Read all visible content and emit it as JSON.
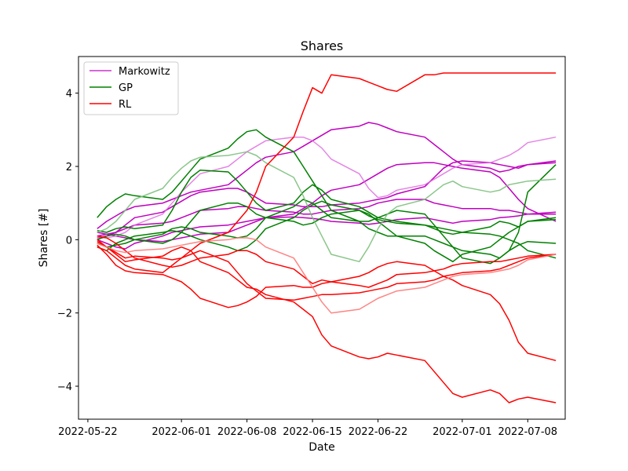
{
  "chart_data": {
    "type": "line",
    "title": "Shares",
    "xlabel": "Date",
    "ylabel": "Shares [#]",
    "x_dates": [
      "2022-05-23",
      "2022-05-24",
      "2022-05-25",
      "2022-05-26",
      "2022-05-27",
      "2022-05-30",
      "2022-05-31",
      "2022-06-01",
      "2022-06-02",
      "2022-06-03",
      "2022-06-06",
      "2022-06-07",
      "2022-06-08",
      "2022-06-09",
      "2022-06-10",
      "2022-06-13",
      "2022-06-14",
      "2022-06-15",
      "2022-06-16",
      "2022-06-17",
      "2022-06-20",
      "2022-06-21",
      "2022-06-22",
      "2022-06-23",
      "2022-06-24",
      "2022-06-27",
      "2022-06-28",
      "2022-06-29",
      "2022-06-30",
      "2022-07-01",
      "2022-07-04",
      "2022-07-05",
      "2022-07-06",
      "2022-07-07",
      "2022-07-08",
      "2022-07-11"
    ],
    "xticks": [
      "2022-05-22",
      "2022-06-01",
      "2022-06-08",
      "2022-06-15",
      "2022-06-22",
      "2022-07-01",
      "2022-07-08"
    ],
    "xlim": [
      "2022-05-21",
      "2022-07-12"
    ],
    "yticks": [
      -4,
      -2,
      0,
      2,
      4
    ],
    "ylim": [
      -4.9,
      5.0
    ],
    "grid": false,
    "legend": {
      "position": "upper-left",
      "entries": [
        {
          "label": "Markowitz",
          "color": "#cc33cc"
        },
        {
          "label": "GP",
          "color": "#008000"
        },
        {
          "label": "RL",
          "color": "#ff0000"
        }
      ]
    },
    "series": [
      {
        "group": "Markowitz",
        "color": "#bf00bf",
        "opacity": 1.0,
        "values": [
          0.3,
          0.5,
          0.65,
          0.8,
          0.9,
          1.0,
          1.1,
          1.2,
          1.3,
          1.35,
          1.5,
          1.7,
          1.9,
          2.1,
          2.25,
          2.4,
          2.55,
          2.7,
          2.85,
          3.0,
          3.1,
          3.2,
          3.15,
          3.05,
          2.95,
          2.8,
          2.6,
          2.4,
          2.2,
          2.05,
          1.95,
          1.85,
          1.9,
          2.0,
          2.05,
          2.1
        ]
      },
      {
        "group": "Markowitz",
        "color": "#bf00bf",
        "opacity": 1.0,
        "values": [
          0.1,
          0.15,
          0.2,
          0.4,
          0.6,
          0.75,
          0.9,
          1.05,
          1.2,
          1.3,
          1.4,
          1.4,
          1.3,
          1.15,
          1.0,
          0.95,
          0.9,
          0.9,
          0.9,
          0.95,
          1.0,
          1.05,
          1.1,
          1.15,
          1.25,
          1.45,
          1.7,
          1.95,
          2.1,
          2.15,
          2.1,
          2.05,
          2.0,
          1.95,
          2.05,
          2.15
        ]
      },
      {
        "group": "Markowitz",
        "color": "#bf00bf",
        "opacity": 1.0,
        "values": [
          0.05,
          0.1,
          0.2,
          0.3,
          0.4,
          0.45,
          0.5,
          0.6,
          0.7,
          0.8,
          0.85,
          0.9,
          0.9,
          0.85,
          0.8,
          0.75,
          0.7,
          0.7,
          0.75,
          0.8,
          0.85,
          0.9,
          1.0,
          1.05,
          1.1,
          1.1,
          1.0,
          0.95,
          0.9,
          0.85,
          0.85,
          0.8,
          0.8,
          0.75,
          0.7,
          0.7
        ]
      },
      {
        "group": "Markowitz",
        "color": "#bf00bf",
        "opacity": 1.0,
        "values": [
          0.0,
          -0.1,
          -0.2,
          -0.25,
          -0.1,
          0.1,
          0.2,
          0.25,
          0.3,
          0.35,
          0.4,
          0.45,
          0.5,
          0.55,
          0.6,
          0.62,
          0.6,
          0.58,
          0.55,
          0.5,
          0.45,
          0.42,
          0.45,
          0.5,
          0.55,
          0.6,
          0.55,
          0.5,
          0.45,
          0.5,
          0.55,
          0.6,
          0.62,
          0.65,
          0.7,
          0.75
        ]
      },
      {
        "group": "Markowitz",
        "color": "#bf00bf",
        "opacity": 1.0,
        "values": [
          0.2,
          0.15,
          0.1,
          0.05,
          0.0,
          -0.05,
          0.0,
          0.05,
          0.1,
          0.15,
          0.2,
          0.3,
          0.4,
          0.5,
          0.6,
          0.7,
          0.85,
          1.0,
          1.2,
          1.35,
          1.5,
          1.65,
          1.8,
          1.95,
          2.05,
          2.1,
          2.1,
          2.05,
          2.0,
          1.95,
          1.85,
          1.7,
          1.4,
          1.1,
          0.85,
          0.5
        ]
      },
      {
        "group": "Markowitz",
        "color": "#dd66dd",
        "opacity": 0.8,
        "values": [
          0.05,
          0.05,
          0.1,
          0.2,
          0.4,
          0.7,
          1.0,
          1.3,
          1.55,
          1.8,
          2.0,
          2.2,
          2.4,
          2.55,
          2.7,
          2.8,
          2.8,
          2.7,
          2.5,
          2.2,
          1.8,
          1.4,
          1.15,
          1.2,
          1.35,
          1.5,
          1.65,
          1.8,
          1.95,
          2.05,
          2.1,
          2.2,
          2.3,
          2.45,
          2.65,
          2.8
        ]
      },
      {
        "group": "GP",
        "color": "#008000",
        "opacity": 1.0,
        "values": [
          0.6,
          0.9,
          1.1,
          1.25,
          1.2,
          1.1,
          1.3,
          1.6,
          1.9,
          2.2,
          2.5,
          2.75,
          2.95,
          3.0,
          2.8,
          2.4,
          2.0,
          1.6,
          1.2,
          0.8,
          0.5,
          0.3,
          0.2,
          0.1,
          0.1,
          0.1,
          0.0,
          -0.1,
          -0.2,
          -0.3,
          -0.4,
          -0.5,
          -0.3,
          0.2,
          1.3,
          2.05
        ]
      },
      {
        "group": "GP",
        "color": "#008000",
        "opacity": 1.0,
        "values": [
          0.25,
          0.2,
          0.3,
          0.35,
          0.3,
          0.4,
          0.8,
          1.3,
          1.7,
          1.9,
          1.85,
          1.6,
          1.3,
          1.0,
          0.8,
          1.0,
          1.3,
          1.5,
          1.35,
          1.1,
          0.9,
          0.75,
          0.6,
          0.55,
          0.5,
          0.4,
          0.3,
          0.2,
          0.15,
          0.2,
          0.35,
          0.5,
          0.45,
          0.35,
          0.5,
          0.6
        ]
      },
      {
        "group": "GP",
        "color": "#008000",
        "opacity": 1.0,
        "values": [
          -0.2,
          -0.3,
          -0.1,
          0.0,
          0.1,
          0.2,
          0.25,
          0.2,
          0.1,
          0.0,
          -0.2,
          -0.3,
          -0.2,
          0.0,
          0.3,
          0.6,
          0.8,
          0.95,
          1.05,
          0.95,
          0.8,
          0.65,
          0.55,
          0.5,
          0.45,
          0.4,
          0.35,
          0.3,
          0.25,
          0.2,
          0.15,
          0.1,
          0.0,
          -0.1,
          -0.3,
          -0.5
        ]
      },
      {
        "group": "GP",
        "color": "#008000",
        "opacity": 1.0,
        "values": [
          0.0,
          0.1,
          0.15,
          0.1,
          0.0,
          -0.1,
          0.0,
          0.2,
          0.5,
          0.8,
          1.0,
          1.0,
          0.9,
          0.7,
          0.6,
          0.5,
          0.4,
          0.45,
          0.6,
          0.7,
          0.8,
          0.7,
          0.5,
          0.3,
          0.1,
          -0.1,
          -0.3,
          -0.45,
          -0.6,
          -0.4,
          -0.2,
          0.0,
          0.2,
          0.35,
          0.5,
          0.55
        ]
      },
      {
        "group": "GP",
        "color": "#008000",
        "opacity": 1.0,
        "values": [
          -0.1,
          -0.2,
          -0.15,
          -0.1,
          0.0,
          0.15,
          0.3,
          0.35,
          0.3,
          0.2,
          0.1,
          0.05,
          0.1,
          0.3,
          0.6,
          0.9,
          1.1,
          1.0,
          0.8,
          0.6,
          0.5,
          0.5,
          0.6,
          0.7,
          0.8,
          0.7,
          0.4,
          0.1,
          -0.2,
          -0.5,
          -0.65,
          -0.5,
          -0.3,
          -0.15,
          -0.05,
          -0.1
        ]
      },
      {
        "group": "GP",
        "color": "#7dc07d",
        "opacity": 0.9,
        "values": [
          0.2,
          0.3,
          0.5,
          0.8,
          1.1,
          1.4,
          1.7,
          1.95,
          2.15,
          2.25,
          2.3,
          2.35,
          2.4,
          2.3,
          2.1,
          1.7,
          1.2,
          0.6,
          0.1,
          -0.4,
          -0.6,
          -0.2,
          0.3,
          0.7,
          0.9,
          1.1,
          1.3,
          1.5,
          1.6,
          1.45,
          1.3,
          1.35,
          1.5,
          1.55,
          1.6,
          1.65
        ]
      },
      {
        "group": "RL",
        "color": "#ff0000",
        "opacity": 1.0,
        "values": [
          -0.2,
          -0.3,
          -0.5,
          -0.7,
          -0.8,
          -0.9,
          -0.7,
          -0.5,
          -0.3,
          -0.1,
          0.2,
          0.5,
          0.8,
          1.3,
          2.0,
          2.8,
          3.5,
          4.15,
          4.0,
          4.5,
          4.4,
          4.3,
          4.2,
          4.1,
          4.05,
          4.5,
          4.5,
          4.55,
          4.55,
          4.55,
          4.55,
          4.55,
          4.55,
          4.55,
          4.55,
          4.55
        ]
      },
      {
        "group": "RL",
        "color": "#ff0000",
        "opacity": 1.0,
        "values": [
          -0.15,
          -0.4,
          -0.7,
          -0.85,
          -0.9,
          -0.95,
          -1.05,
          -1.15,
          -1.35,
          -1.6,
          -1.85,
          -1.8,
          -1.7,
          -1.55,
          -1.3,
          -1.25,
          -1.3,
          -1.3,
          -1.2,
          -1.15,
          -1.25,
          -1.3,
          -1.2,
          -1.1,
          -0.95,
          -0.9,
          -0.85,
          -0.8,
          -0.7,
          -0.65,
          -0.6,
          -0.6,
          -0.55,
          -0.5,
          -0.45,
          -0.4
        ]
      },
      {
        "group": "RL",
        "color": "#ff0000",
        "opacity": 1.0,
        "values": [
          -0.05,
          -0.2,
          -0.4,
          -0.6,
          -0.55,
          -0.45,
          -0.3,
          -0.2,
          -0.3,
          -0.6,
          -0.9,
          -1.1,
          -1.3,
          -1.35,
          -1.5,
          -1.7,
          -1.9,
          -2.1,
          -2.6,
          -2.9,
          -3.2,
          -3.25,
          -3.2,
          -3.1,
          -3.15,
          -3.3,
          -3.6,
          -3.9,
          -4.2,
          -4.3,
          -4.1,
          -4.2,
          -4.45,
          -4.35,
          -4.3,
          -4.45
        ]
      },
      {
        "group": "RL",
        "color": "#ff0000",
        "opacity": 1.0,
        "values": [
          0.0,
          -0.2,
          -0.35,
          -0.5,
          -0.45,
          -0.5,
          -0.55,
          -0.5,
          -0.4,
          -0.3,
          -0.6,
          -0.9,
          -1.2,
          -1.4,
          -1.6,
          -1.65,
          -1.6,
          -1.55,
          -1.5,
          -1.5,
          -1.45,
          -1.4,
          -1.35,
          -1.3,
          -1.2,
          -1.15,
          -1.1,
          -1.0,
          -0.95,
          -0.9,
          -0.85,
          -0.8,
          -0.7,
          -0.6,
          -0.5,
          -0.4
        ]
      },
      {
        "group": "RL",
        "color": "#ff0000",
        "opacity": 1.0,
        "values": [
          0.1,
          0.05,
          -0.1,
          -0.3,
          -0.5,
          -0.7,
          -0.75,
          -0.7,
          -0.6,
          -0.5,
          -0.4,
          -0.3,
          -0.3,
          -0.4,
          -0.6,
          -0.8,
          -1.0,
          -1.2,
          -1.1,
          -1.15,
          -1.0,
          -0.9,
          -0.75,
          -0.65,
          -0.6,
          -0.7,
          -0.85,
          -1.0,
          -1.1,
          -1.25,
          -1.5,
          -1.75,
          -2.2,
          -2.8,
          -3.1,
          -3.3
        ]
      },
      {
        "group": "RL",
        "color": "#ff7777",
        "opacity": 0.9,
        "values": [
          -0.1,
          -0.2,
          -0.3,
          -0.35,
          -0.3,
          -0.25,
          -0.2,
          -0.15,
          -0.1,
          -0.05,
          0.0,
          0.05,
          0.05,
          0.0,
          -0.2,
          -0.5,
          -0.9,
          -1.3,
          -1.7,
          -2.0,
          -1.9,
          -1.75,
          -1.6,
          -1.5,
          -1.4,
          -1.3,
          -1.2,
          -1.1,
          -1.0,
          -0.95,
          -0.9,
          -0.85,
          -0.8,
          -0.7,
          -0.55,
          -0.4
        ]
      }
    ]
  }
}
